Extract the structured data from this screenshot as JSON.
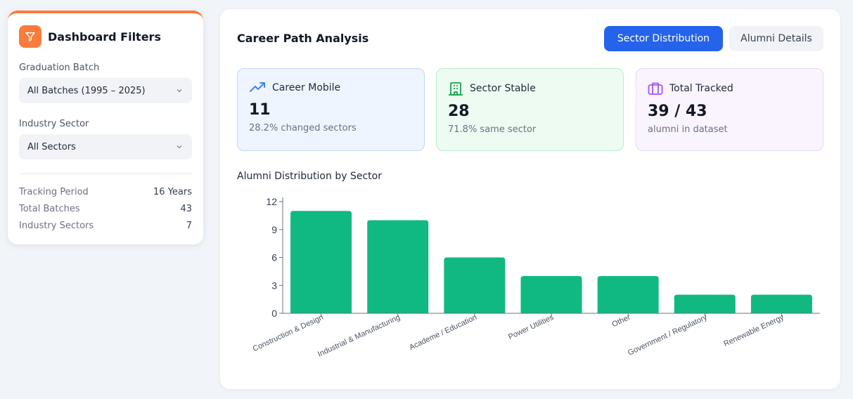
{
  "filters": {
    "title": "Dashboard Filters",
    "icon": "funnel-icon",
    "batch_label": "Graduation Batch",
    "batch_value": "All Batches (1995 – 2025)",
    "sector_label": "Industry Sector",
    "sector_value": "All Sectors",
    "stats": [
      {
        "label": "Tracking Period",
        "value": "16 Years"
      },
      {
        "label": "Total Batches",
        "value": "43"
      },
      {
        "label": "Industry Sectors",
        "value": "7"
      }
    ]
  },
  "main": {
    "title": "Career Path Analysis",
    "tabs": [
      {
        "label": "Sector Distribution",
        "active": true
      },
      {
        "label": "Alumni Details",
        "active": false
      }
    ],
    "kpis": [
      {
        "icon": "trending-up-icon",
        "label": "Career Mobile",
        "value": "11",
        "sub": "28.2% changed sectors",
        "color": "#3b82f6"
      },
      {
        "icon": "building-icon",
        "label": "Sector Stable",
        "value": "28",
        "sub": "71.8% same sector",
        "color": "#16a34a"
      },
      {
        "icon": "briefcase-icon",
        "label": "Total Tracked",
        "value": "39 / 43",
        "sub": "alumni in dataset",
        "color": "#a855f7"
      }
    ]
  },
  "chart_data": {
    "type": "bar",
    "title": "Alumni Distribution by Sector",
    "categories": [
      "Construction & Design",
      "Industrial & Manufacturing",
      "Academe / Education",
      "Power Utilities",
      "Other",
      "Government / Regulatory",
      "Renewable Energy"
    ],
    "values": [
      11,
      10,
      6,
      4,
      4,
      2,
      2
    ],
    "yticks": [
      0,
      3,
      6,
      9,
      12
    ],
    "ylim": [
      0,
      12
    ],
    "bar_color": "#10b981",
    "grid": false,
    "legend": "none"
  },
  "colors": {
    "accent": "#2563eb",
    "filter_accent": "#f97c3c",
    "bar": "#10b981"
  }
}
